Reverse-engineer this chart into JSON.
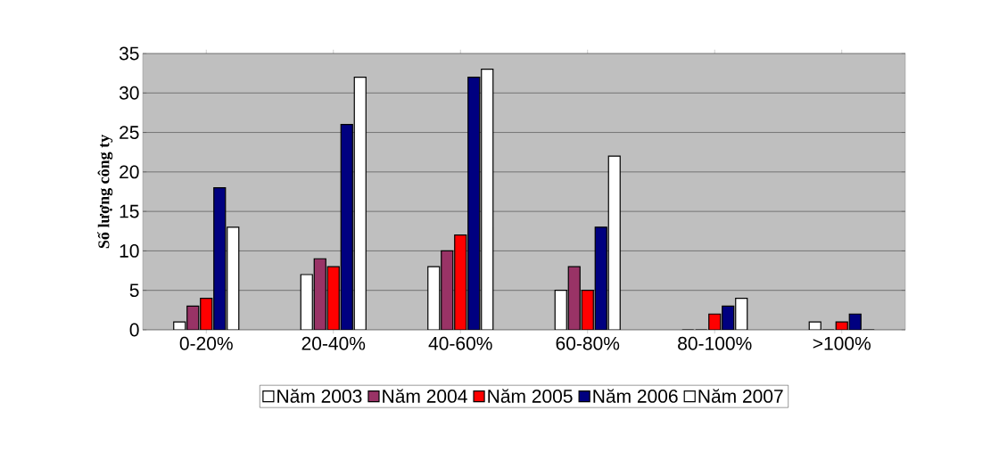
{
  "chart_data": {
    "type": "bar",
    "ylabel": "Số lượng công ty",
    "categories": [
      "0-20%",
      "20-40%",
      "40-60%",
      "60-80%",
      "80-100%",
      ">100%"
    ],
    "series": [
      {
        "name": "Năm 2003",
        "color": "#ffffff",
        "values": [
          1,
          7,
          8,
          5,
          0,
          1
        ]
      },
      {
        "name": "Năm 2004",
        "color": "#993366",
        "values": [
          3,
          9,
          10,
          8,
          0,
          0
        ]
      },
      {
        "name": "Năm 2005",
        "color": "#ff0000",
        "values": [
          4,
          8,
          12,
          5,
          2,
          1
        ]
      },
      {
        "name": "Năm 2006",
        "color": "#000080",
        "values": [
          18,
          26,
          32,
          13,
          3,
          2
        ]
      },
      {
        "name": "Năm 2007",
        "color": "#ffffff",
        "values": [
          13,
          32,
          33,
          22,
          4,
          0
        ]
      }
    ],
    "ylim": [
      0,
      35
    ],
    "yticks": [
      0,
      5,
      10,
      15,
      20,
      25,
      30,
      35
    ],
    "grid": "y",
    "legend": "bottom"
  }
}
